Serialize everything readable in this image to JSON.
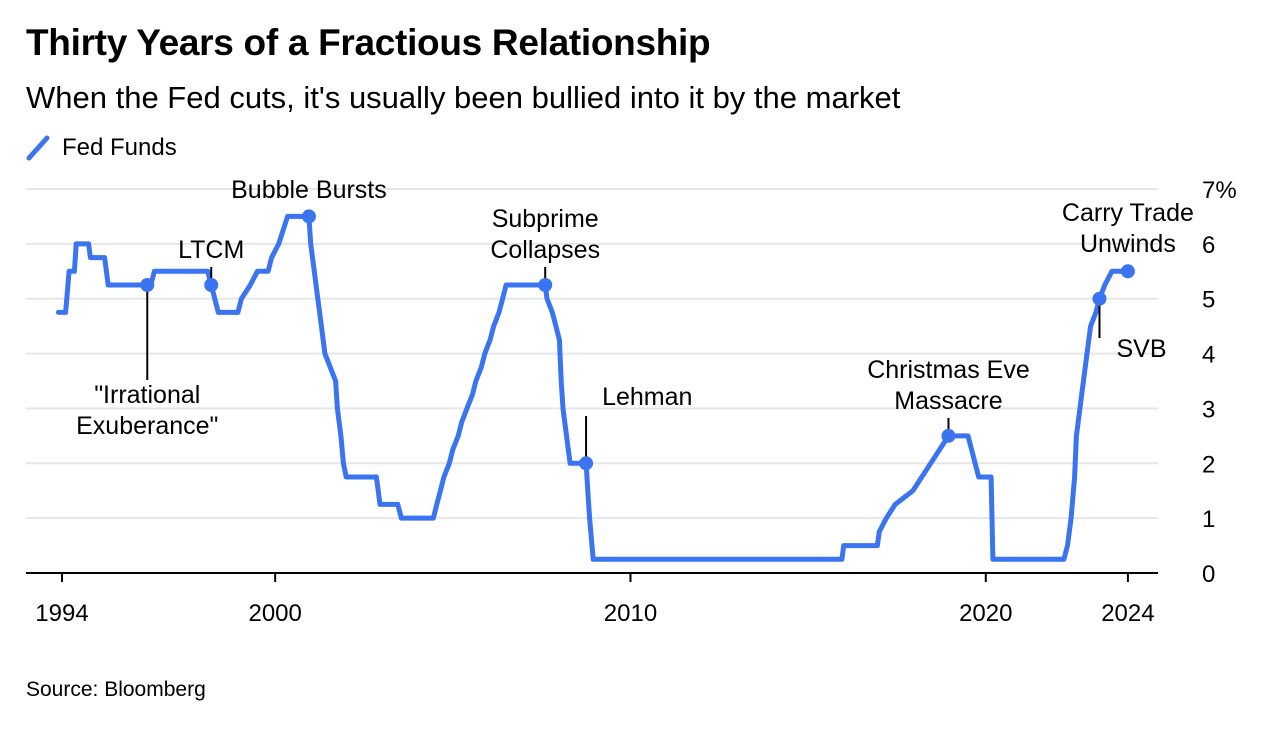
{
  "header": {
    "title": "Thirty Years of a Fractious Relationship",
    "subtitle": "When the Fed cuts, it's usually been bullied into it by the market"
  },
  "footer": {
    "source": "Source: Bloomberg"
  },
  "colors": {
    "line": "#3a74f0",
    "grid": "#e6e6e6",
    "axis": "#000000"
  },
  "chart_data": {
    "type": "line",
    "title": "Thirty Years of a Fractious Relationship",
    "subtitle": "When the Fed cuts, it's usually been bullied into it by the market",
    "legend": {
      "position": "top-left",
      "entries": [
        "Fed Funds"
      ]
    },
    "xlim": [
      1993,
      2025
    ],
    "ylim": [
      0,
      7
    ],
    "grid": true,
    "y_axis_side": "right",
    "x_ticks": [
      {
        "value": 1994,
        "label": "1994"
      },
      {
        "value": 2000,
        "label": "2000"
      },
      {
        "value": 2010,
        "label": "2010"
      },
      {
        "value": 2020,
        "label": "2020"
      },
      {
        "value": 2024,
        "label": "2024"
      }
    ],
    "y_ticks": [
      {
        "value": 0,
        "label": "0"
      },
      {
        "value": 1,
        "label": "1"
      },
      {
        "value": 2,
        "label": "2"
      },
      {
        "value": 3,
        "label": "3"
      },
      {
        "value": 4,
        "label": "4"
      },
      {
        "value": 5,
        "label": "5"
      },
      {
        "value": 6,
        "label": "6"
      },
      {
        "value": 7,
        "label": "7%"
      }
    ],
    "series": [
      {
        "name": "Fed Funds",
        "points": [
          [
            1993.9,
            4.75
          ],
          [
            1994.1,
            4.75
          ],
          [
            1994.2,
            5.5
          ],
          [
            1994.35,
            5.5
          ],
          [
            1994.4,
            6.0
          ],
          [
            1994.75,
            6.0
          ],
          [
            1994.8,
            5.75
          ],
          [
            1995.2,
            5.75
          ],
          [
            1995.3,
            5.25
          ],
          [
            1996.4,
            5.25
          ],
          [
            1996.5,
            5.25
          ],
          [
            1996.6,
            5.5
          ],
          [
            1998.1,
            5.5
          ],
          [
            1998.2,
            5.25
          ],
          [
            1998.3,
            5.0
          ],
          [
            1998.4,
            4.75
          ],
          [
            1998.95,
            4.75
          ],
          [
            1999.05,
            5.0
          ],
          [
            1999.3,
            5.25
          ],
          [
            1999.5,
            5.5
          ],
          [
            1999.8,
            5.5
          ],
          [
            1999.9,
            5.75
          ],
          [
            2000.1,
            6.0
          ],
          [
            2000.35,
            6.5
          ],
          [
            2000.95,
            6.5
          ],
          [
            2001.0,
            6.0
          ],
          [
            2001.1,
            5.5
          ],
          [
            2001.2,
            5.0
          ],
          [
            2001.3,
            4.5
          ],
          [
            2001.4,
            4.0
          ],
          [
            2001.55,
            3.75
          ],
          [
            2001.7,
            3.5
          ],
          [
            2001.75,
            3.0
          ],
          [
            2001.85,
            2.5
          ],
          [
            2001.92,
            2.0
          ],
          [
            2002.0,
            1.75
          ],
          [
            2002.85,
            1.75
          ],
          [
            2002.95,
            1.25
          ],
          [
            2003.45,
            1.25
          ],
          [
            2003.55,
            1.0
          ],
          [
            2004.45,
            1.0
          ],
          [
            2004.55,
            1.25
          ],
          [
            2004.65,
            1.5
          ],
          [
            2004.75,
            1.75
          ],
          [
            2004.9,
            2.0
          ],
          [
            2005.0,
            2.25
          ],
          [
            2005.15,
            2.5
          ],
          [
            2005.25,
            2.75
          ],
          [
            2005.4,
            3.0
          ],
          [
            2005.55,
            3.25
          ],
          [
            2005.65,
            3.5
          ],
          [
            2005.8,
            3.75
          ],
          [
            2005.9,
            4.0
          ],
          [
            2006.05,
            4.25
          ],
          [
            2006.15,
            4.5
          ],
          [
            2006.3,
            4.75
          ],
          [
            2006.4,
            5.0
          ],
          [
            2006.5,
            5.25
          ],
          [
            2007.6,
            5.25
          ],
          [
            2007.65,
            5.0
          ],
          [
            2007.8,
            4.75
          ],
          [
            2007.9,
            4.5
          ],
          [
            2008.0,
            4.25
          ],
          [
            2008.05,
            3.5
          ],
          [
            2008.1,
            3.0
          ],
          [
            2008.25,
            2.25
          ],
          [
            2008.3,
            2.0
          ],
          [
            2008.75,
            2.0
          ],
          [
            2008.8,
            1.5
          ],
          [
            2008.85,
            1.0
          ],
          [
            2008.95,
            0.25
          ],
          [
            2015.95,
            0.25
          ],
          [
            2016.0,
            0.5
          ],
          [
            2016.95,
            0.5
          ],
          [
            2017.0,
            0.75
          ],
          [
            2017.2,
            1.0
          ],
          [
            2017.45,
            1.25
          ],
          [
            2017.95,
            1.5
          ],
          [
            2018.2,
            1.75
          ],
          [
            2018.45,
            2.0
          ],
          [
            2018.7,
            2.25
          ],
          [
            2018.95,
            2.5
          ],
          [
            2019.5,
            2.5
          ],
          [
            2019.6,
            2.25
          ],
          [
            2019.7,
            2.0
          ],
          [
            2019.8,
            1.75
          ],
          [
            2020.15,
            1.75
          ],
          [
            2020.2,
            0.25
          ],
          [
            2022.2,
            0.25
          ],
          [
            2022.3,
            0.5
          ],
          [
            2022.4,
            1.0
          ],
          [
            2022.5,
            1.75
          ],
          [
            2022.55,
            2.5
          ],
          [
            2022.7,
            3.25
          ],
          [
            2022.85,
            4.0
          ],
          [
            2022.95,
            4.5
          ],
          [
            2023.1,
            4.75
          ],
          [
            2023.2,
            5.0
          ],
          [
            2023.35,
            5.25
          ],
          [
            2023.55,
            5.5
          ],
          [
            2024.0,
            5.5
          ]
        ]
      }
    ],
    "annotations": [
      {
        "label_lines": [
          "\"Irrational",
          "Exuberance\""
        ],
        "x": 1996.4,
        "y": 5.25,
        "placement": "below"
      },
      {
        "label_lines": [
          "LTCM"
        ],
        "x": 1998.2,
        "y": 5.25,
        "placement": "above"
      },
      {
        "label_lines": [
          "Bubble Bursts"
        ],
        "x": 2000.95,
        "y": 6.5,
        "placement": "above"
      },
      {
        "label_lines": [
          "Subprime",
          "Collapses"
        ],
        "x": 2007.6,
        "y": 5.25,
        "placement": "above"
      },
      {
        "label_lines": [
          "Lehman"
        ],
        "x": 2008.75,
        "y": 2.0,
        "placement": "above-right"
      },
      {
        "label_lines": [
          "Christmas Eve",
          "Massacre"
        ],
        "x": 2018.95,
        "y": 2.5,
        "placement": "above"
      },
      {
        "label_lines": [
          "SVB"
        ],
        "x": 2023.2,
        "y": 5.0,
        "placement": "below-right"
      },
      {
        "label_lines": [
          "Carry Trade",
          "Unwinds"
        ],
        "x": 2024.0,
        "y": 5.5,
        "placement": "above"
      }
    ]
  }
}
